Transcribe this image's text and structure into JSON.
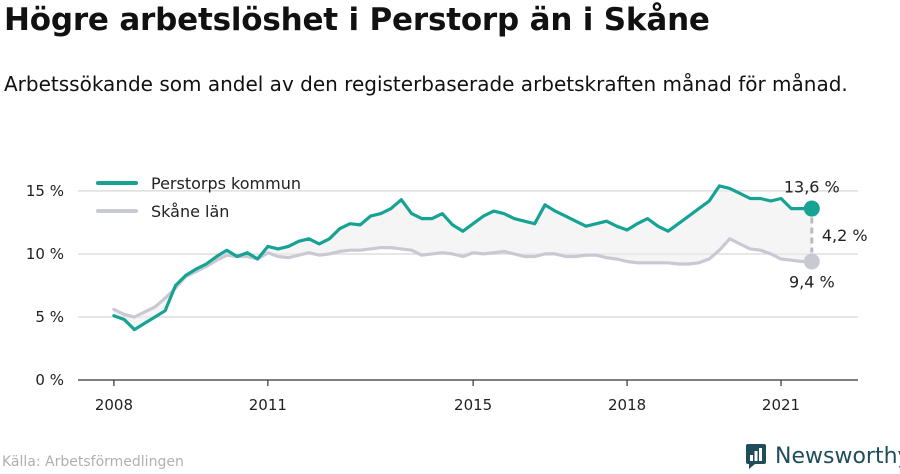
{
  "title": "Högre arbetslöshet i Perstorp än i Skåne",
  "subtitle": "Arbetssökande som andel av den registerbaserade arbetskraften månad för månad.",
  "source": "Källa: Arbetsförmedlingen",
  "brand": {
    "name": "Newsworthy",
    "icon": "newsworthy-logo-icon"
  },
  "colors": {
    "perstorp": "#16a394",
    "skane": "#c9c9d3",
    "band": "#ececec",
    "grid": "#dddddd"
  },
  "chart_data": {
    "type": "line",
    "yaxis": {
      "ticks": [
        0,
        5,
        10,
        15
      ],
      "tick_labels": [
        "0 %",
        "5 %",
        "10 %",
        "15 %"
      ],
      "ylim": [
        0,
        16.5
      ]
    },
    "xaxis": {
      "tick_labels": [
        "2008",
        "2011",
        "2015",
        "2018",
        "2021"
      ],
      "tick_values": [
        2008.0,
        2011.0,
        2015.0,
        2018.0,
        2021.0
      ],
      "xlim": [
        2007.3,
        2022.5
      ]
    },
    "legend": {
      "placement": "top-left"
    },
    "series": [
      {
        "name": "Perstorps kommun",
        "color": "#16a394",
        "x": [
          2008.0,
          2008.2,
          2008.4,
          2008.6,
          2008.8,
          2009.0,
          2009.2,
          2009.4,
          2009.6,
          2009.8,
          2010.0,
          2010.2,
          2010.4,
          2010.6,
          2010.8,
          2011.0,
          2011.2,
          2011.4,
          2011.6,
          2011.8,
          2012.0,
          2012.2,
          2012.4,
          2012.6,
          2012.8,
          2013.0,
          2013.2,
          2013.4,
          2013.6,
          2013.8,
          2014.0,
          2014.2,
          2014.4,
          2014.6,
          2014.8,
          2015.0,
          2015.2,
          2015.4,
          2015.6,
          2015.8,
          2016.0,
          2016.2,
          2016.4,
          2016.6,
          2016.8,
          2017.0,
          2017.2,
          2017.4,
          2017.6,
          2017.8,
          2018.0,
          2018.2,
          2018.4,
          2018.6,
          2018.8,
          2019.0,
          2019.2,
          2019.4,
          2019.6,
          2019.8,
          2020.0,
          2020.2,
          2020.4,
          2020.6,
          2020.8,
          2021.0,
          2021.2,
          2021.4,
          2021.6
        ],
        "values": [
          5.1,
          4.8,
          4.0,
          4.5,
          5.0,
          5.5,
          7.5,
          8.3,
          8.8,
          9.2,
          9.8,
          10.3,
          9.8,
          10.1,
          9.6,
          10.6,
          10.4,
          10.6,
          11.0,
          11.2,
          10.8,
          11.2,
          12.0,
          12.4,
          12.3,
          13.0,
          13.2,
          13.6,
          14.3,
          13.2,
          12.8,
          12.8,
          13.2,
          12.3,
          11.8,
          12.4,
          13.0,
          13.4,
          13.2,
          12.8,
          12.6,
          12.4,
          13.9,
          13.4,
          13.0,
          12.6,
          12.2,
          12.4,
          12.6,
          12.2,
          11.9,
          12.4,
          12.8,
          12.2,
          11.8,
          12.4,
          13.0,
          13.6,
          14.2,
          15.4,
          15.2,
          14.8,
          14.4,
          14.4,
          14.2,
          14.4,
          13.6,
          13.6,
          13.6
        ]
      },
      {
        "name": "Skåne län",
        "color": "#c9c9d3",
        "x": [
          2008.0,
          2008.2,
          2008.4,
          2008.6,
          2008.8,
          2009.0,
          2009.2,
          2009.4,
          2009.6,
          2009.8,
          2010.0,
          2010.2,
          2010.4,
          2010.6,
          2010.8,
          2011.0,
          2011.2,
          2011.4,
          2011.6,
          2011.8,
          2012.0,
          2012.2,
          2012.4,
          2012.6,
          2012.8,
          2013.0,
          2013.2,
          2013.4,
          2013.6,
          2013.8,
          2014.0,
          2014.2,
          2014.4,
          2014.6,
          2014.8,
          2015.0,
          2015.2,
          2015.4,
          2015.6,
          2015.8,
          2016.0,
          2016.2,
          2016.4,
          2016.6,
          2016.8,
          2017.0,
          2017.2,
          2017.4,
          2017.6,
          2017.8,
          2018.0,
          2018.2,
          2018.4,
          2018.6,
          2018.8,
          2019.0,
          2019.2,
          2019.4,
          2019.6,
          2019.8,
          2020.0,
          2020.2,
          2020.4,
          2020.6,
          2020.8,
          2021.0,
          2021.2,
          2021.4,
          2021.6
        ],
        "values": [
          5.6,
          5.2,
          5.0,
          5.4,
          5.8,
          6.5,
          7.3,
          8.2,
          8.6,
          9.0,
          9.5,
          9.9,
          9.8,
          9.8,
          9.6,
          10.1,
          9.8,
          9.7,
          9.9,
          10.1,
          9.9,
          10.0,
          10.2,
          10.3,
          10.3,
          10.4,
          10.5,
          10.5,
          10.4,
          10.3,
          9.9,
          10.0,
          10.1,
          10.0,
          9.8,
          10.1,
          10.0,
          10.1,
          10.2,
          10.0,
          9.8,
          9.8,
          10.0,
          10.0,
          9.8,
          9.8,
          9.9,
          9.9,
          9.7,
          9.6,
          9.4,
          9.3,
          9.3,
          9.3,
          9.3,
          9.2,
          9.2,
          9.3,
          9.6,
          10.3,
          11.2,
          10.8,
          10.4,
          10.3,
          10.0,
          9.6,
          9.5,
          9.4,
          9.4
        ]
      }
    ],
    "annotations": {
      "perstorp_last": "13,6 %",
      "skane_last": "9,4 %",
      "difference": "4,2 %"
    }
  }
}
